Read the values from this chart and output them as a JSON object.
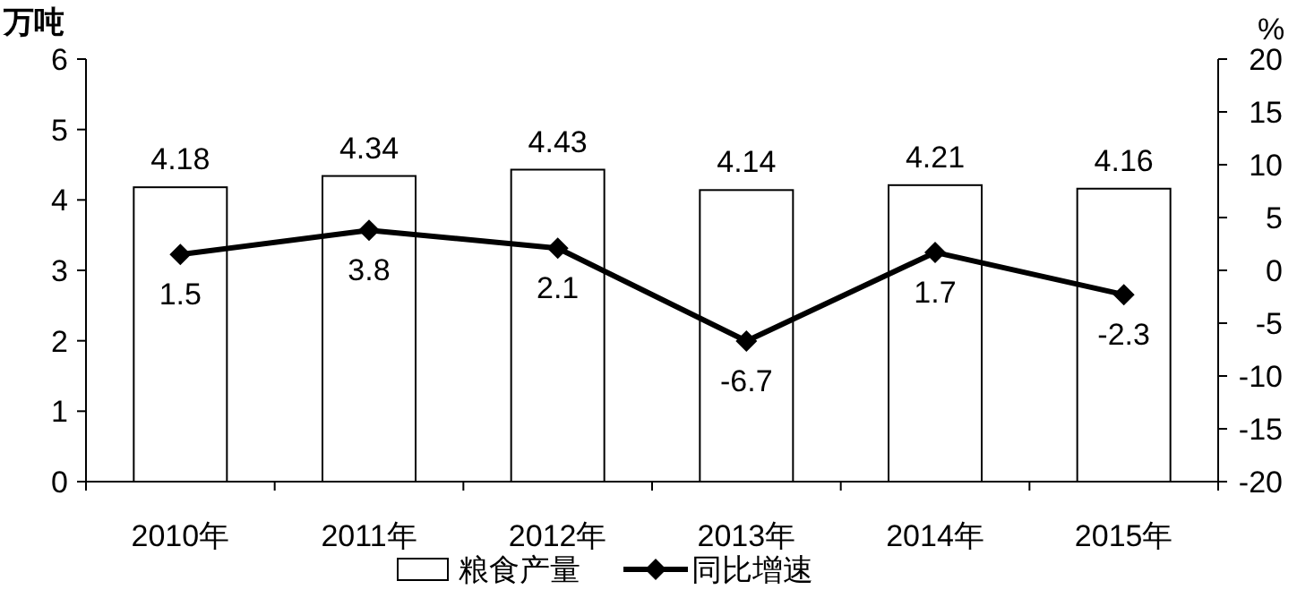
{
  "chart_data": {
    "type": "bar",
    "ylabel": "万吨",
    "y2label": "%",
    "categories": [
      "2010年",
      "2011年",
      "2012年",
      "2013年",
      "2014年",
      "2015年"
    ],
    "series": [
      {
        "name": "粮食产量",
        "color": "#ffffff",
        "values": [
          4.18,
          4.34,
          4.43,
          4.14,
          4.21,
          4.16
        ]
      },
      {
        "name": "同比增速",
        "type": "line",
        "axis": "y2",
        "color": "#000000",
        "marker": "diamond",
        "values": [
          1.5,
          3.8,
          2.1,
          -6.7,
          1.7,
          -2.3
        ]
      }
    ],
    "ylim": [
      0,
      6
    ],
    "yticks": [
      0,
      1,
      2,
      3,
      4,
      5,
      6
    ],
    "y2lim": [
      -20,
      20
    ],
    "y2ticks": [
      -20,
      -15,
      -10,
      -5,
      0,
      5,
      10,
      15,
      20
    ],
    "data_labels": true,
    "legend": "bottom",
    "grid": false
  }
}
